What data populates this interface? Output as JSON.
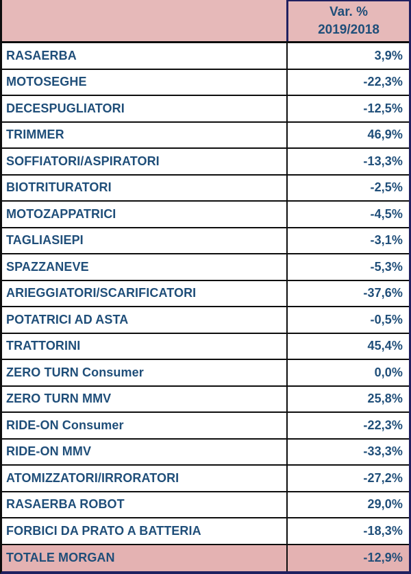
{
  "chart_data": {
    "type": "table",
    "title": "Var. % 2019/2018",
    "header": {
      "line1": "Var. %",
      "line2": "2019/2018"
    },
    "columns": [
      "",
      "Var. % 2019/2018"
    ],
    "rows": [
      {
        "label": "RASAERBA",
        "value": "3,9%",
        "value_numeric": 3.9
      },
      {
        "label": "MOTOSEGHE",
        "value": "-22,3%",
        "value_numeric": -22.3
      },
      {
        "label": "DECESPUGLIATORI",
        "value": "-12,5%",
        "value_numeric": -12.5
      },
      {
        "label": "TRIMMER",
        "value": "46,9%",
        "value_numeric": 46.9
      },
      {
        "label": "SOFFIATORI/ASPIRATORI",
        "value": "-13,3%",
        "value_numeric": -13.3
      },
      {
        "label": "BIOTRITURATORI",
        "value": "-2,5%",
        "value_numeric": -2.5
      },
      {
        "label": "MOTOZAPPATRICI",
        "value": "-4,5%",
        "value_numeric": -4.5
      },
      {
        "label": "TAGLIASIEPI",
        "value": "-3,1%",
        "value_numeric": -3.1
      },
      {
        "label": "SPAZZANEVE",
        "value": "-5,3%",
        "value_numeric": -5.3
      },
      {
        "label": "ARIEGGIATORI/SCARIFICATORI",
        "value": "-37,6%",
        "value_numeric": -37.6
      },
      {
        "label": "POTATRICI AD ASTA",
        "value": "-0,5%",
        "value_numeric": -0.5
      },
      {
        "label": "TRATTORINI",
        "value": "45,4%",
        "value_numeric": 45.4
      },
      {
        "label": "ZERO TURN Consumer",
        "value": "0,0%",
        "value_numeric": 0.0
      },
      {
        "label": "ZERO TURN MMV",
        "value": "25,8%",
        "value_numeric": 25.8
      },
      {
        "label": "RIDE-ON Consumer",
        "value": "-22,3%",
        "value_numeric": -22.3
      },
      {
        "label": "RIDE-ON MMV",
        "value": "-33,3%",
        "value_numeric": -33.3
      },
      {
        "label": "ATOMIZZATORI/IRRORATORI",
        "value": "-27,2%",
        "value_numeric": -27.2
      },
      {
        "label": "RASAERBA ROBOT",
        "value": "29,0%",
        "value_numeric": 29.0
      },
      {
        "label": "FORBICI DA PRATO A BATTERIA",
        "value": "-18,3%",
        "value_numeric": -18.3
      },
      {
        "label": "TOTALE MORGAN",
        "value": "-12,9%",
        "value_numeric": -12.9,
        "is_total": true
      }
    ],
    "layout": {
      "grid": true,
      "value_column_align": "right",
      "label_column_align": "left"
    }
  },
  "colors": {
    "header_pink": "#E6B9B9",
    "total_pink": "#E4B2B2",
    "text_blue": "#1F4E79",
    "border_navy": "#202060",
    "grid_black": "#0D0D0D"
  }
}
